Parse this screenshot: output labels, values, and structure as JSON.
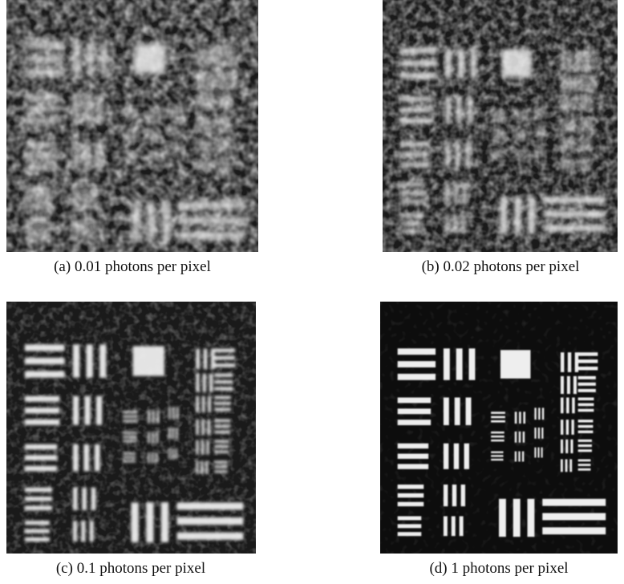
{
  "figures": [
    {
      "label": "(a)",
      "caption": "0.01 photons per pixel"
    },
    {
      "label": "(b)",
      "caption": "0.02 photons per pixel"
    },
    {
      "label": "(c)",
      "caption": "0.1 photons per pixel"
    },
    {
      "label": "(d)",
      "caption": "1 photons per pixel"
    }
  ]
}
